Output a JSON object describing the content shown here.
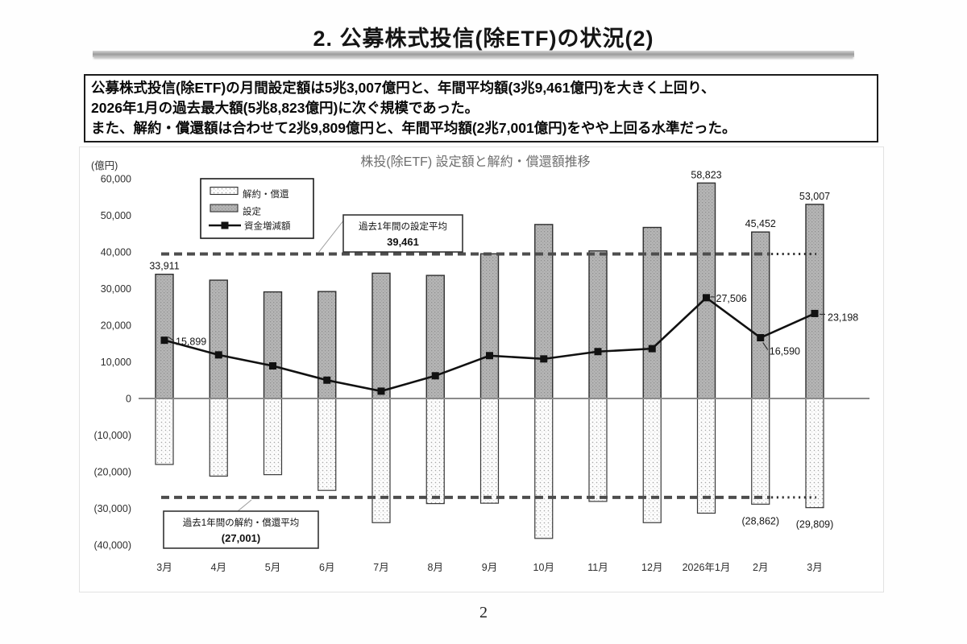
{
  "page": {
    "title": "2. 公募株式投信(除ETF)の状況(2)",
    "page_number": "2"
  },
  "summary_box": {
    "lines": [
      "公募株式投信(除ETF)の月間設定額は5兆3,007億円と、年間平均額(3兆9,461億円)を大きく上回り、",
      "2026年1月の過去最大額(5兆8,823億円)に次ぐ規模であった。",
      "また、解約・償還額は合わせて2兆9,809億円と、年間平均額(2兆7,001億円)をやや上回る水準だった。"
    ]
  },
  "chart_data": {
    "type": "bar",
    "subtype": "bar-line-combo",
    "title": "株投(除ETF) 設定額と解約・償還額推移",
    "unit_label": "(億円)",
    "ylim": [
      -40000,
      60000
    ],
    "grid": false,
    "legend_position": "upper-left-inside",
    "categories": [
      "3月",
      "4月",
      "5月",
      "6月",
      "7月",
      "8月",
      "9月",
      "10月",
      "11月",
      "12月",
      "2026年1月",
      "2月",
      "3月"
    ],
    "series": [
      {
        "name": "設定",
        "type": "bar",
        "values": [
          33911,
          32300,
          29100,
          29200,
          34200,
          33600,
          39500,
          47500,
          40300,
          46700,
          58823,
          45452,
          53007
        ]
      },
      {
        "name": "解約・償還",
        "type": "bar",
        "values": [
          -18012,
          -21200,
          -20800,
          -25100,
          -33900,
          -28700,
          -28600,
          -38200,
          -28100,
          -33900,
          -31317,
          -28862,
          -29809
        ]
      },
      {
        "name": "資金増減額",
        "type": "line",
        "values": [
          15899,
          11900,
          8900,
          5000,
          2000,
          6200,
          11700,
          10800,
          12800,
          13600,
          27506,
          16590,
          23198
        ]
      }
    ],
    "legend": [
      "解約・償還",
      "設定",
      "資金増減額"
    ],
    "y_axis": {
      "tick_values": [
        60000,
        50000,
        40000,
        30000,
        20000,
        10000,
        0,
        -10000,
        -20000,
        -30000,
        -40000
      ],
      "tick_labels": [
        "60,000",
        "50,000",
        "40,000",
        "30,000",
        "20,000",
        "10,000",
        "0",
        "(10,000)",
        "(20,000)",
        "(30,000)",
        "(40,000)"
      ]
    },
    "value_labels": {
      "settings": [
        {
          "index": 0,
          "text": "33,911"
        },
        {
          "index": 10,
          "text": "58,823"
        },
        {
          "index": 11,
          "text": "45,452"
        },
        {
          "index": 12,
          "text": "53,007"
        }
      ],
      "redemptions": [
        {
          "index": 11,
          "text": "(28,862)"
        },
        {
          "index": 12,
          "text": "(29,809)"
        }
      ],
      "net": [
        {
          "index": 0,
          "text": "15,899"
        },
        {
          "index": 10,
          "text": "27,506"
        },
        {
          "index": 11,
          "text": "16,590"
        },
        {
          "index": 12,
          "text": "23,198"
        }
      ]
    },
    "averages": {
      "setting": {
        "box_label": "過去1年間の設定平均",
        "value": 39461,
        "value_text": "39,461"
      },
      "redemption": {
        "box_label": "過去1年間の解約・償還平均",
        "value": -27001,
        "value_text": "(27,001)"
      }
    }
  }
}
